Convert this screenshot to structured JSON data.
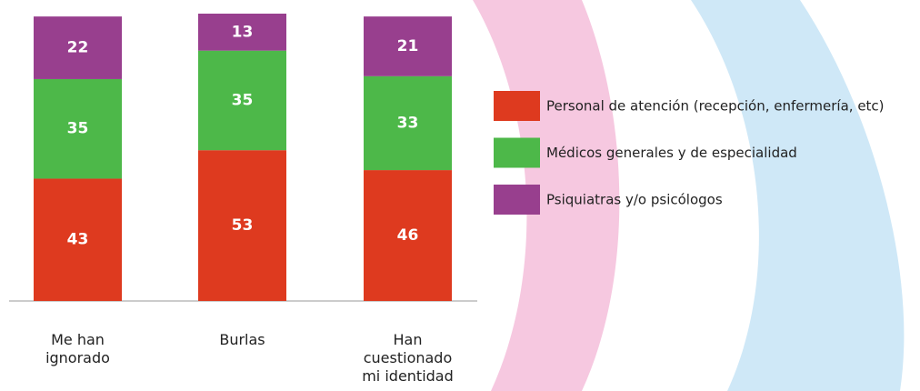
{
  "chart_data": {
    "type": "stacked-bar",
    "categories": [
      "Me han ignorado",
      "Burlas",
      "Han cuestionado mi identidad"
    ],
    "series": [
      {
        "name": "Personal de atención (recepción, enfermería, etc)",
        "color": "#de3a1f",
        "values": [
          43,
          53,
          46
        ]
      },
      {
        "name": "Médicos generales y de especialidad",
        "color": "#4db849",
        "values": [
          35,
          35,
          33
        ]
      },
      {
        "name": "Psiquiatras y/o psicólogos",
        "color": "#983f8e",
        "values": [
          22,
          13,
          21
        ]
      }
    ]
  }
}
